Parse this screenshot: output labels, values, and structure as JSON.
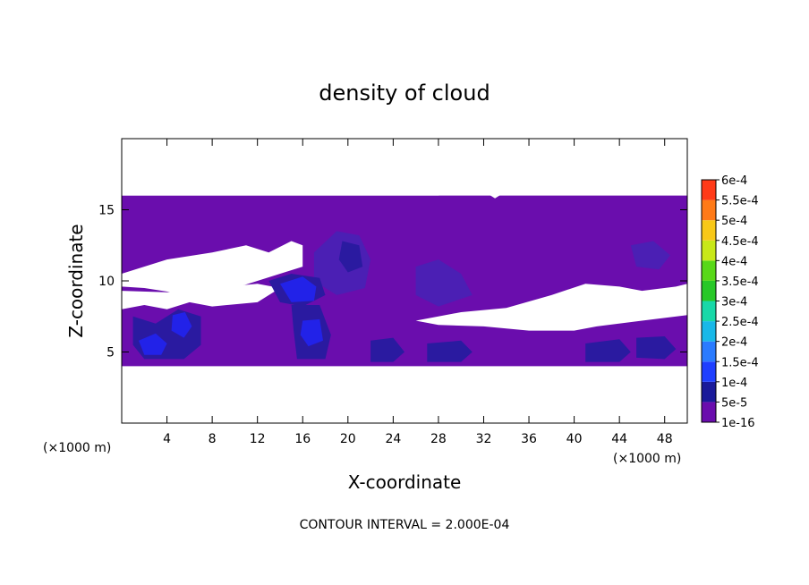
{
  "chart_data": {
    "type": "heatmap",
    "title": "density of cloud",
    "xlabel": "X-coordinate",
    "ylabel": "Z-coordinate",
    "x_unit": "(×1000 m)",
    "z_unit": "(×1000 m)",
    "xlim": [
      0,
      50
    ],
    "ylim": [
      0,
      20
    ],
    "x_ticks": [
      4,
      8,
      12,
      16,
      20,
      24,
      28,
      32,
      36,
      40,
      44,
      48
    ],
    "x_tick_labels": [
      "4",
      "8",
      "12",
      "16",
      "20",
      "24",
      "28",
      "32",
      "36",
      "40",
      "44",
      "48"
    ],
    "y_ticks": [
      5,
      10,
      15
    ],
    "y_tick_labels": [
      "5",
      "10",
      "15"
    ],
    "footer": "CONTOUR INTERVAL = 2.000E-04",
    "colorbar": {
      "levels": [
        "1e-16",
        "5e-5",
        "1e-4",
        "1.5e-4",
        "2e-4",
        "2.5e-4",
        "3e-4",
        "3.5e-4",
        "4e-4",
        "4.5e-4",
        "5e-4",
        "5.5e-4",
        "6e-4"
      ],
      "colors": [
        "#6a0dad",
        "#1a1a9a",
        "#1f3fff",
        "#2a7bff",
        "#18b8e8",
        "#18d8a8",
        "#28c828",
        "#58d818",
        "#c8e818",
        "#f8c818",
        "#ff7a18",
        "#ff3a18",
        "#ff6a6a"
      ]
    },
    "regions": [
      {
        "level": "1e-16",
        "color": "#6a0dad",
        "outline": [
          [
            0,
            4
          ],
          [
            50,
            4
          ],
          [
            50,
            16
          ],
          [
            0,
            16
          ]
        ]
      },
      {
        "level": "1e-16",
        "fill": "#ffffff",
        "outline": [
          [
            0,
            10.5
          ],
          [
            4,
            11.5
          ],
          [
            8,
            12
          ],
          [
            11,
            12.5
          ],
          [
            13,
            12
          ],
          [
            15,
            12.8
          ],
          [
            16,
            12.5
          ],
          [
            16,
            11
          ],
          [
            14,
            10.5
          ],
          [
            12,
            10
          ],
          [
            10,
            9.5
          ],
          [
            6,
            9
          ],
          [
            2,
            9.5
          ],
          [
            0,
            9.6
          ]
        ]
      },
      {
        "level": "1e-16",
        "fill": "#ffffff",
        "outline": [
          [
            0,
            8
          ],
          [
            2,
            8.3
          ],
          [
            4,
            8
          ],
          [
            6,
            8.5
          ],
          [
            8,
            8.2
          ],
          [
            12,
            8.5
          ],
          [
            14,
            9.5
          ],
          [
            12,
            9.8
          ],
          [
            8,
            9.5
          ],
          [
            4,
            9.2
          ],
          [
            0,
            9.3
          ]
        ]
      },
      {
        "level": "1e-16",
        "fill": "#ffffff",
        "outline": [
          [
            26,
            7.2
          ],
          [
            30,
            7.8
          ],
          [
            34,
            8.1
          ],
          [
            38,
            9
          ],
          [
            41,
            9.8
          ],
          [
            44,
            9.6
          ],
          [
            46,
            9.3
          ],
          [
            49,
            9.6
          ],
          [
            50,
            9.8
          ],
          [
            50,
            7.6
          ],
          [
            46,
            7.2
          ],
          [
            42,
            6.8
          ],
          [
            40,
            6.5
          ],
          [
            36,
            6.5
          ],
          [
            32,
            6.8
          ],
          [
            28,
            6.9
          ]
        ]
      },
      {
        "level": "1e-16",
        "fill": "#ffffff",
        "outline": [
          [
            0,
            16
          ],
          [
            28,
            16
          ],
          [
            30,
            16.2
          ],
          [
            32,
            16.3
          ],
          [
            33,
            15.8
          ],
          [
            35,
            16.8
          ],
          [
            38,
            17
          ],
          [
            42,
            16.8
          ],
          [
            46,
            16.5
          ],
          [
            50,
            16.3
          ],
          [
            50,
            20
          ],
          [
            0,
            20
          ]
        ]
      },
      {
        "level": "5e-5",
        "color": "#4b1fb4",
        "outline": [
          [
            17,
            12
          ],
          [
            19,
            13.5
          ],
          [
            21,
            13.2
          ],
          [
            22,
            11.5
          ],
          [
            21.5,
            9.5
          ],
          [
            19,
            9
          ],
          [
            17,
            10
          ]
        ]
      },
      {
        "level": "5e-5",
        "color": "#4b1fb4",
        "outline": [
          [
            26,
            11
          ],
          [
            28,
            11.5
          ],
          [
            30,
            10.5
          ],
          [
            31,
            9
          ],
          [
            28,
            8.2
          ],
          [
            26,
            9
          ]
        ]
      },
      {
        "level": "5e-5",
        "color": "#4b1fb4",
        "outline": [
          [
            45,
            12.5
          ],
          [
            47,
            12.8
          ],
          [
            48.5,
            11.8
          ],
          [
            47.5,
            10.8
          ],
          [
            45.5,
            11
          ]
        ]
      },
      {
        "level": "1e-4",
        "color": "#2a1aa0",
        "outline": [
          [
            19.5,
            12.8
          ],
          [
            21,
            12.5
          ],
          [
            21.3,
            11
          ],
          [
            20,
            10.6
          ],
          [
            19.2,
            11.5
          ]
        ]
      },
      {
        "level": "1e-4",
        "color": "#2a1aa0",
        "outline": [
          [
            13,
            10
          ],
          [
            15,
            10.5
          ],
          [
            17.5,
            10.2
          ],
          [
            18,
            9
          ],
          [
            16,
            8.2
          ],
          [
            14,
            8.5
          ]
        ]
      },
      {
        "level": "1e-4",
        "color": "#2a1aa0",
        "outline": [
          [
            1,
            7.5
          ],
          [
            3,
            7
          ],
          [
            5,
            8
          ],
          [
            7,
            7.5
          ],
          [
            7,
            5.5
          ],
          [
            5.5,
            4.5
          ],
          [
            2,
            4.5
          ],
          [
            1,
            5.5
          ]
        ]
      },
      {
        "level": "1e-4",
        "color": "#2a1aa0",
        "outline": [
          [
            15,
            8.3
          ],
          [
            17.5,
            8.3
          ],
          [
            18.5,
            6.2
          ],
          [
            18,
            4.5
          ],
          [
            15.5,
            4.5
          ],
          [
            15.2,
            6.5
          ]
        ]
      },
      {
        "level": "1e-4",
        "color": "#2a1aa0",
        "outline": [
          [
            22,
            5.8
          ],
          [
            24,
            6
          ],
          [
            25,
            5
          ],
          [
            24,
            4.3
          ],
          [
            22,
            4.3
          ]
        ]
      },
      {
        "level": "1e-4",
        "color": "#2a1aa0",
        "outline": [
          [
            27,
            5.6
          ],
          [
            30,
            5.8
          ],
          [
            31,
            5
          ],
          [
            30,
            4.3
          ],
          [
            27,
            4.3
          ]
        ]
      },
      {
        "level": "1e-4",
        "color": "#2a1aa0",
        "outline": [
          [
            41,
            5.6
          ],
          [
            44,
            5.9
          ],
          [
            45,
            5
          ],
          [
            44,
            4.3
          ],
          [
            41,
            4.3
          ]
        ]
      },
      {
        "level": "1e-4",
        "color": "#2a1aa0",
        "outline": [
          [
            45.5,
            6
          ],
          [
            48,
            6.1
          ],
          [
            49,
            5.2
          ],
          [
            48,
            4.5
          ],
          [
            45.5,
            4.6
          ]
        ]
      },
      {
        "level": "1.5e-4",
        "color": "#2222e8",
        "outline": [
          [
            14,
            9.8
          ],
          [
            16,
            10.3
          ],
          [
            17.2,
            9.6
          ],
          [
            17,
            8.6
          ],
          [
            15,
            8.5
          ]
        ]
      },
      {
        "level": "1.5e-4",
        "color": "#2222e8",
        "outline": [
          [
            1.5,
            5.8
          ],
          [
            3,
            6.3
          ],
          [
            4,
            5.6
          ],
          [
            3.5,
            4.8
          ],
          [
            2,
            4.8
          ]
        ]
      },
      {
        "level": "1.5e-4",
        "color": "#2222e8",
        "outline": [
          [
            4.5,
            7.6
          ],
          [
            5.6,
            7.8
          ],
          [
            6.2,
            6.8
          ],
          [
            5.5,
            6
          ],
          [
            4.4,
            6.5
          ]
        ]
      },
      {
        "level": "1.5e-4",
        "color": "#2222e8",
        "outline": [
          [
            16,
            7.2
          ],
          [
            17.5,
            7.3
          ],
          [
            17.8,
            5.8
          ],
          [
            16.5,
            5.4
          ],
          [
            15.8,
            6.2
          ]
        ]
      }
    ]
  }
}
